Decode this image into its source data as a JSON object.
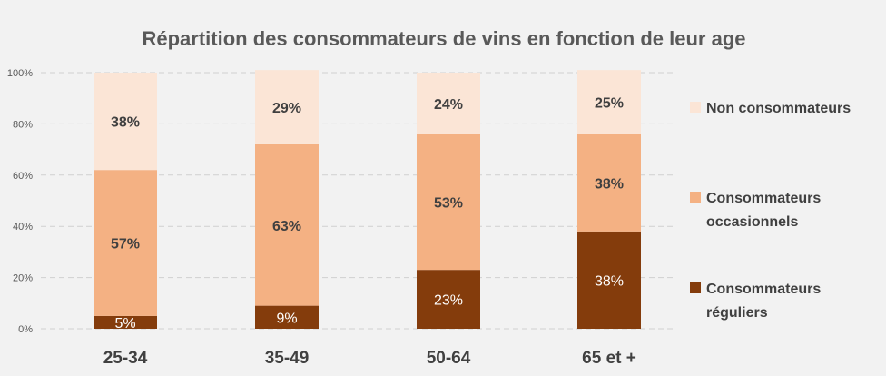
{
  "chart_data": {
    "type": "bar",
    "stacked": true,
    "title": "Répartition des consommateurs de vins en fonction de leur age",
    "xlabel": "",
    "ylabel": "",
    "ylim": [
      0,
      100
    ],
    "yticks": [
      "0%",
      "20%",
      "40%",
      "60%",
      "80%",
      "100%"
    ],
    "grid": true,
    "legend_position": "right",
    "categories": [
      "25-34",
      "35-49",
      "50-64",
      "65 et +"
    ],
    "series": [
      {
        "name": "Consommateurs réguliers",
        "legend_label": [
          "Consommateurs",
          "réguliers"
        ],
        "values": [
          5,
          9,
          23,
          38
        ],
        "labels": [
          "5%",
          "9%",
          "23%",
          "38%"
        ],
        "color": "#843c0c"
      },
      {
        "name": "Consommateurs occasionnels",
        "legend_label": [
          "Consommateurs",
          "occasionnels"
        ],
        "values": [
          57,
          63,
          53,
          38
        ],
        "labels": [
          "57%",
          "63%",
          "53%",
          "38%"
        ],
        "color": "#f4b183"
      },
      {
        "name": "Non consommateurs",
        "legend_label": [
          "Non consommateurs"
        ],
        "values": [
          38,
          29,
          24,
          25
        ],
        "labels": [
          "38%",
          "29%",
          "24%",
          "25%"
        ],
        "color": "#fbe5d6"
      }
    ]
  }
}
